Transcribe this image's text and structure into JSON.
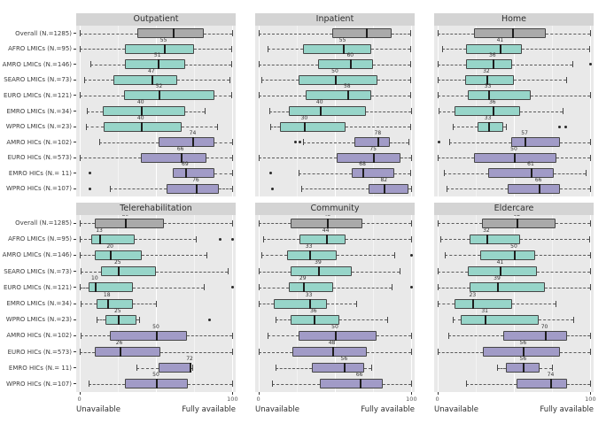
{
  "figure": {
    "background": "#ffffff"
  },
  "chart_data": {
    "type": "boxplot",
    "facet_layout": {
      "rows": 2,
      "cols": 3
    },
    "x_axis": {
      "min": 0,
      "max": 100,
      "ticks": [
        0,
        100
      ],
      "left_label": "Unavailable",
      "right_label": "Fully available"
    },
    "groups": [
      "Overall (N.=1285)",
      "AFRO LMICs (N.=95)",
      "AMRO LMICs (N.=146)",
      "SEARO LMICs (N.=73)",
      "EURO LMICs (N.=121)",
      "EMRO LMICs (N.=34)",
      "WPRO LMICs (N.=23)",
      "AMRO HICs (N.=102)",
      "EURO HICs (N.=573)",
      "EMRO HICs (N.= 11)",
      "WPRO HICs (N.=107)"
    ],
    "group_classes": [
      "overall",
      "lmic",
      "lmic",
      "lmic",
      "lmic",
      "lmic",
      "lmic",
      "hic",
      "hic",
      "hic",
      "hic"
    ],
    "colors": {
      "overall": "#aaaaaa",
      "lmic": "#97d5c9",
      "hic": "#a19bc7",
      "panel_background": "#e9e9e9",
      "strip_background": "#d4d4d4"
    },
    "panels": [
      {
        "title": "Outpatient",
        "boxes": [
          {
            "lo": 0,
            "q1": 38,
            "med": 61,
            "q3": 81,
            "hi": 100,
            "out": []
          },
          {
            "lo": 0,
            "q1": 30,
            "med": 55,
            "q3": 75,
            "hi": 99,
            "out": []
          },
          {
            "lo": 7,
            "q1": 30,
            "med": 51,
            "q3": 69,
            "hi": 99,
            "out": []
          },
          {
            "lo": 3,
            "q1": 22,
            "med": 47,
            "q3": 64,
            "hi": 98,
            "out": []
          },
          {
            "lo": 0,
            "q1": 29,
            "med": 52,
            "q3": 88,
            "hi": 99,
            "out": []
          },
          {
            "lo": 5,
            "q1": 15,
            "med": 40,
            "q3": 69,
            "hi": 82,
            "out": []
          },
          {
            "lo": 4,
            "q1": 16,
            "med": 40,
            "q3": 67,
            "hi": 90,
            "out": []
          },
          {
            "lo": 13,
            "q1": 52,
            "med": 74,
            "q3": 88,
            "hi": 100,
            "out": []
          },
          {
            "lo": 0,
            "q1": 40,
            "med": 66,
            "q3": 83,
            "hi": 100,
            "out": []
          },
          {
            "lo": 61,
            "q1": 61,
            "med": 69,
            "q3": 88,
            "hi": 100,
            "out": [
              7
            ]
          },
          {
            "lo": 20,
            "q1": 57,
            "med": 76,
            "q3": 91,
            "hi": 100,
            "out": [
              7
            ]
          }
        ]
      },
      {
        "title": "Inpatient",
        "boxes": [
          {
            "lo": 0,
            "q1": 48,
            "med": 70,
            "q3": 87,
            "hi": 99,
            "out": []
          },
          {
            "lo": 6,
            "q1": 29,
            "med": 55,
            "q3": 74,
            "hi": 99,
            "out": []
          },
          {
            "lo": 0,
            "q1": 39,
            "med": 60,
            "q3": 75,
            "hi": 99,
            "out": []
          },
          {
            "lo": 2,
            "q1": 26,
            "med": 50,
            "q3": 78,
            "hi": 99,
            "out": []
          },
          {
            "lo": 0,
            "q1": 31,
            "med": 58,
            "q3": 74,
            "hi": 99,
            "out": []
          },
          {
            "lo": 7,
            "q1": 20,
            "med": 40,
            "q3": 70,
            "hi": 100,
            "out": []
          },
          {
            "lo": 8,
            "q1": 14,
            "med": 30,
            "q3": 57,
            "hi": 99,
            "out": []
          },
          {
            "lo": 29,
            "q1": 63,
            "med": 78,
            "q3": 86,
            "hi": 98,
            "out": [
              24,
              27
            ]
          },
          {
            "lo": 0,
            "q1": 51,
            "med": 75,
            "q3": 93,
            "hi": 100,
            "out": []
          },
          {
            "lo": 26,
            "q1": 61,
            "med": 68,
            "q3": 89,
            "hi": 99,
            "out": [
              8
            ]
          },
          {
            "lo": 28,
            "q1": 72,
            "med": 82,
            "q3": 98,
            "hi": 100,
            "out": [
              9
            ]
          }
        ]
      },
      {
        "title": "Home",
        "boxes": [
          {
            "lo": 0,
            "q1": 24,
            "med": 49,
            "q3": 71,
            "hi": 100,
            "out": []
          },
          {
            "lo": 3,
            "q1": 19,
            "med": 41,
            "q3": 55,
            "hi": 99,
            "out": []
          },
          {
            "lo": 0,
            "q1": 19,
            "med": 36,
            "q3": 49,
            "hi": 88,
            "out": [
              100
            ]
          },
          {
            "lo": 0,
            "q1": 18,
            "med": 32,
            "q3": 50,
            "hi": 84,
            "out": []
          },
          {
            "lo": 0,
            "q1": 20,
            "med": 33,
            "q3": 61,
            "hi": 100,
            "out": []
          },
          {
            "lo": 1,
            "q1": 11,
            "med": 36,
            "q3": 54,
            "hi": 82,
            "out": []
          },
          {
            "lo": 10,
            "q1": 26,
            "med": 33,
            "q3": 43,
            "hi": 45,
            "out": [
              80,
              84
            ]
          },
          {
            "lo": 8,
            "q1": 48,
            "med": 57,
            "q3": 80,
            "hi": 100,
            "out": [
              1
            ]
          },
          {
            "lo": 0,
            "q1": 24,
            "med": 50,
            "q3": 78,
            "hi": 100,
            "out": []
          },
          {
            "lo": 4,
            "q1": 33,
            "med": 61,
            "q3": 76,
            "hi": 97,
            "out": []
          },
          {
            "lo": 6,
            "q1": 46,
            "med": 66,
            "q3": 80,
            "hi": 100,
            "out": []
          }
        ]
      },
      {
        "title": "Telerehabilitation",
        "boxes": [
          {
            "lo": 0,
            "q1": 10,
            "med": 30,
            "q3": 55,
            "hi": 100,
            "out": []
          },
          {
            "lo": 0,
            "q1": 8,
            "med": 13,
            "q3": 36,
            "hi": 76,
            "out": [
              92,
              100
            ]
          },
          {
            "lo": 0,
            "q1": 10,
            "med": 20,
            "q3": 41,
            "hi": 83,
            "out": []
          },
          {
            "lo": 1,
            "q1": 14,
            "med": 25,
            "q3": 50,
            "hi": 97,
            "out": []
          },
          {
            "lo": 0,
            "q1": 6,
            "med": 10,
            "q3": 35,
            "hi": 81,
            "out": [
              100
            ]
          },
          {
            "lo": 1,
            "q1": 11,
            "med": 18,
            "q3": 35,
            "hi": 50,
            "out": []
          },
          {
            "lo": 11,
            "q1": 17,
            "med": 25,
            "q3": 37,
            "hi": 39,
            "out": [
              85
            ]
          },
          {
            "lo": 1,
            "q1": 20,
            "med": 50,
            "q3": 70,
            "hi": 100,
            "out": []
          },
          {
            "lo": 0,
            "q1": 10,
            "med": 26,
            "q3": 53,
            "hi": 100,
            "out": []
          },
          {
            "lo": 37,
            "q1": 52,
            "med": 72,
            "q3": 73,
            "hi": 74,
            "out": []
          },
          {
            "lo": 6,
            "q1": 30,
            "med": 50,
            "q3": 71,
            "hi": 100,
            "out": []
          }
        ]
      },
      {
        "title": "Community",
        "boxes": [
          {
            "lo": 0,
            "q1": 21,
            "med": 45,
            "q3": 68,
            "hi": 100,
            "out": []
          },
          {
            "lo": 3,
            "q1": 27,
            "med": 44,
            "q3": 57,
            "hi": 100,
            "out": []
          },
          {
            "lo": 2,
            "q1": 19,
            "med": 33,
            "q3": 51,
            "hi": 89,
            "out": [
              100
            ]
          },
          {
            "lo": 0,
            "q1": 21,
            "med": 39,
            "q3": 61,
            "hi": 92,
            "out": []
          },
          {
            "lo": 0,
            "q1": 20,
            "med": 29,
            "q3": 49,
            "hi": 87,
            "out": [
              100
            ]
          },
          {
            "lo": 0,
            "q1": 10,
            "med": 33,
            "q3": 45,
            "hi": 64,
            "out": []
          },
          {
            "lo": 11,
            "q1": 21,
            "med": 36,
            "q3": 53,
            "hi": 84,
            "out": []
          },
          {
            "lo": 6,
            "q1": 26,
            "med": 50,
            "q3": 77,
            "hi": 100,
            "out": []
          },
          {
            "lo": 0,
            "q1": 22,
            "med": 48,
            "q3": 71,
            "hi": 100,
            "out": []
          },
          {
            "lo": 11,
            "q1": 35,
            "med": 56,
            "q3": 69,
            "hi": 74,
            "out": []
          },
          {
            "lo": 9,
            "q1": 40,
            "med": 66,
            "q3": 81,
            "hi": 100,
            "out": []
          }
        ]
      },
      {
        "title": "Eldercare",
        "boxes": [
          {
            "lo": 0,
            "q1": 29,
            "med": 52,
            "q3": 77,
            "hi": 100,
            "out": []
          },
          {
            "lo": 2,
            "q1": 21,
            "med": 32,
            "q3": 54,
            "hi": 99,
            "out": []
          },
          {
            "lo": 5,
            "q1": 28,
            "med": 50,
            "q3": 64,
            "hi": 100,
            "out": []
          },
          {
            "lo": 0,
            "q1": 20,
            "med": 41,
            "q3": 65,
            "hi": 100,
            "out": []
          },
          {
            "lo": 0,
            "q1": 21,
            "med": 39,
            "q3": 70,
            "hi": 100,
            "out": []
          },
          {
            "lo": 0,
            "q1": 11,
            "med": 23,
            "q3": 49,
            "hi": 77,
            "out": []
          },
          {
            "lo": 10,
            "q1": 15,
            "med": 31,
            "q3": 66,
            "hi": 89,
            "out": []
          },
          {
            "lo": 7,
            "q1": 43,
            "med": 70,
            "q3": 85,
            "hi": 100,
            "out": []
          },
          {
            "lo": 0,
            "q1": 30,
            "med": 56,
            "q3": 80,
            "hi": 100,
            "out": []
          },
          {
            "lo": 39,
            "q1": 45,
            "med": 56,
            "q3": 67,
            "hi": 75,
            "out": []
          },
          {
            "lo": 19,
            "q1": 52,
            "med": 74,
            "q3": 85,
            "hi": 100,
            "out": []
          }
        ]
      }
    ]
  }
}
